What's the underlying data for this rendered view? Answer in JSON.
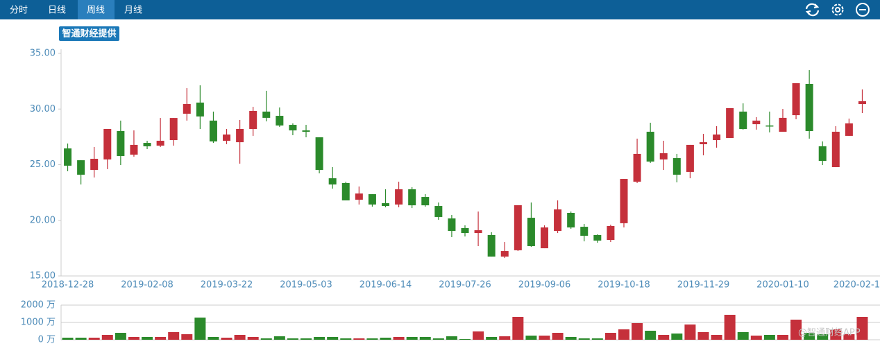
{
  "toolbar": {
    "tabs": [
      "分时",
      "日线",
      "周线",
      "月线"
    ],
    "selected": 2
  },
  "badge": "智通财经提供",
  "watermark": "@智通财经APP",
  "chart_data": [
    {
      "type": "candlestick",
      "categories": [
        "2018-12-28",
        null,
        null,
        null,
        null,
        null,
        "2019-02-08",
        null,
        null,
        null,
        null,
        null,
        "2019-03-22",
        null,
        null,
        null,
        null,
        null,
        "2019-05-03",
        null,
        null,
        null,
        null,
        null,
        "2019-06-14",
        null,
        null,
        null,
        null,
        null,
        "2019-07-26",
        null,
        null,
        null,
        null,
        null,
        "2019-09-06",
        null,
        null,
        null,
        null,
        null,
        "2019-10-18",
        null,
        null,
        null,
        null,
        null,
        "2019-11-29",
        null,
        null,
        null,
        null,
        null,
        "2020-01-10",
        null,
        null,
        null,
        null,
        null,
        "2020-02-1"
      ],
      "open": [
        26.46,
        25.4,
        24.53,
        25.47,
        28.02,
        25.9,
        26.96,
        26.71,
        27.21,
        29.58,
        30.58,
        28.96,
        27.15,
        27.02,
        28.21,
        29.77,
        29.39,
        28.58,
        28.08,
        27.46,
        23.78,
        23.35,
        21.85,
        22.35,
        21.54,
        21.42,
        22.79,
        22.1,
        21.29,
        20.17,
        19.3,
        18.86,
        18.68,
        16.74,
        17.31,
        20.23,
        17.49,
        19.05,
        20.67,
        19.42,
        18.68,
        18.24,
        19.74,
        23.47,
        27.96,
        25.47,
        25.59,
        24.35,
        26.84,
        27.21,
        27.4,
        29.77,
        28.64,
        28.52,
        27.96,
        29.45,
        32.26,
        26.65,
        24.78,
        27.59,
        30.45
      ],
      "close": [
        24.91,
        24.1,
        25.53,
        28.21,
        25.78,
        26.78,
        26.65,
        27.15,
        29.2,
        30.45,
        29.33,
        27.09,
        27.71,
        28.21,
        29.83,
        29.21,
        28.52,
        28.08,
        27.96,
        24.53,
        23.22,
        21.79,
        22.41,
        21.42,
        21.29,
        22.79,
        21.35,
        21.35,
        20.3,
        19.05,
        18.86,
        19.11,
        16.74,
        17.24,
        21.36,
        17.68,
        19.36,
        20.98,
        19.36,
        18.61,
        18.18,
        19.49,
        23.72,
        25.97,
        25.28,
        26.03,
        24.1,
        26.78,
        27.02,
        27.71,
        30.08,
        28.21,
        28.96,
        28.46,
        29.21,
        32.32,
        28.02,
        25.34,
        27.96,
        28.71,
        30.7
      ],
      "high": [
        26.9,
        25.4,
        26.59,
        28.21,
        28.96,
        28.08,
        27.15,
        29.2,
        29.2,
        31.88,
        32.13,
        29.77,
        28.21,
        29.02,
        30.2,
        31.64,
        30.14,
        28.71,
        28.58,
        27.46,
        24.78,
        23.47,
        23.04,
        22.35,
        22.79,
        23.47,
        22.98,
        22.35,
        21.6,
        20.48,
        19.55,
        20.79,
        18.93,
        18.05,
        21.36,
        21.6,
        19.55,
        21.79,
        20.79,
        19.67,
        18.74,
        19.61,
        23.72,
        27.34,
        28.77,
        27.15,
        25.97,
        26.78,
        27.77,
        28.46,
        30.08,
        30.51,
        29.27,
        29.77,
        30.01,
        32.32,
        33.5,
        27.09,
        28.46,
        29.14,
        31.76
      ],
      "low": [
        24.41,
        23.22,
        23.85,
        24.6,
        24.97,
        25.72,
        26.4,
        26.59,
        26.71,
        28.96,
        28.21,
        26.96,
        26.84,
        25.09,
        27.59,
        28.89,
        28.4,
        27.65,
        27.46,
        24.22,
        22.85,
        21.79,
        21.42,
        21.23,
        21.17,
        21.17,
        21.1,
        21.23,
        20.05,
        18.49,
        18.55,
        17.68,
        16.74,
        16.62,
        17.24,
        17.62,
        17.49,
        18.86,
        19.24,
        18.11,
        17.99,
        18.05,
        19.36,
        23.35,
        25.16,
        24.53,
        23.41,
        23.78,
        25.84,
        26.53,
        27.4,
        28.15,
        28.15,
        27.9,
        27.96,
        29.08,
        27.34,
        24.97,
        24.78,
        27.59,
        29.64
      ],
      "up_color": "#c5303b",
      "down_color": "#2b8a2b",
      "ylim": [
        15,
        35
      ],
      "yticks": [
        {
          "value": 15,
          "label": "15.00"
        },
        {
          "value": 20,
          "label": "20.00"
        },
        {
          "value": 25,
          "label": "25.00"
        },
        {
          "value": 30,
          "label": "30.00"
        },
        {
          "value": 35,
          "label": "35.00"
        }
      ]
    },
    {
      "type": "bar",
      "values": [
        120,
        120,
        120,
        280,
        400,
        160,
        160,
        160,
        440,
        320,
        1280,
        160,
        120,
        280,
        160,
        80,
        200,
        80,
        80,
        160,
        160,
        80,
        80,
        80,
        120,
        160,
        160,
        160,
        80,
        200,
        40,
        480,
        160,
        200,
        1320,
        240,
        240,
        400,
        160,
        80,
        80,
        400,
        600,
        960,
        520,
        280,
        360,
        880,
        440,
        280,
        1440,
        440,
        240,
        280,
        280,
        1160,
        400,
        320,
        600,
        320,
        1320
      ],
      "ylim": [
        0,
        2000
      ],
      "yticks": [
        {
          "value": 0,
          "label": "0 万"
        },
        {
          "value": 1000,
          "label": "1000 万"
        },
        {
          "value": 2000,
          "label": "2000 万"
        }
      ],
      "grid": true
    }
  ]
}
